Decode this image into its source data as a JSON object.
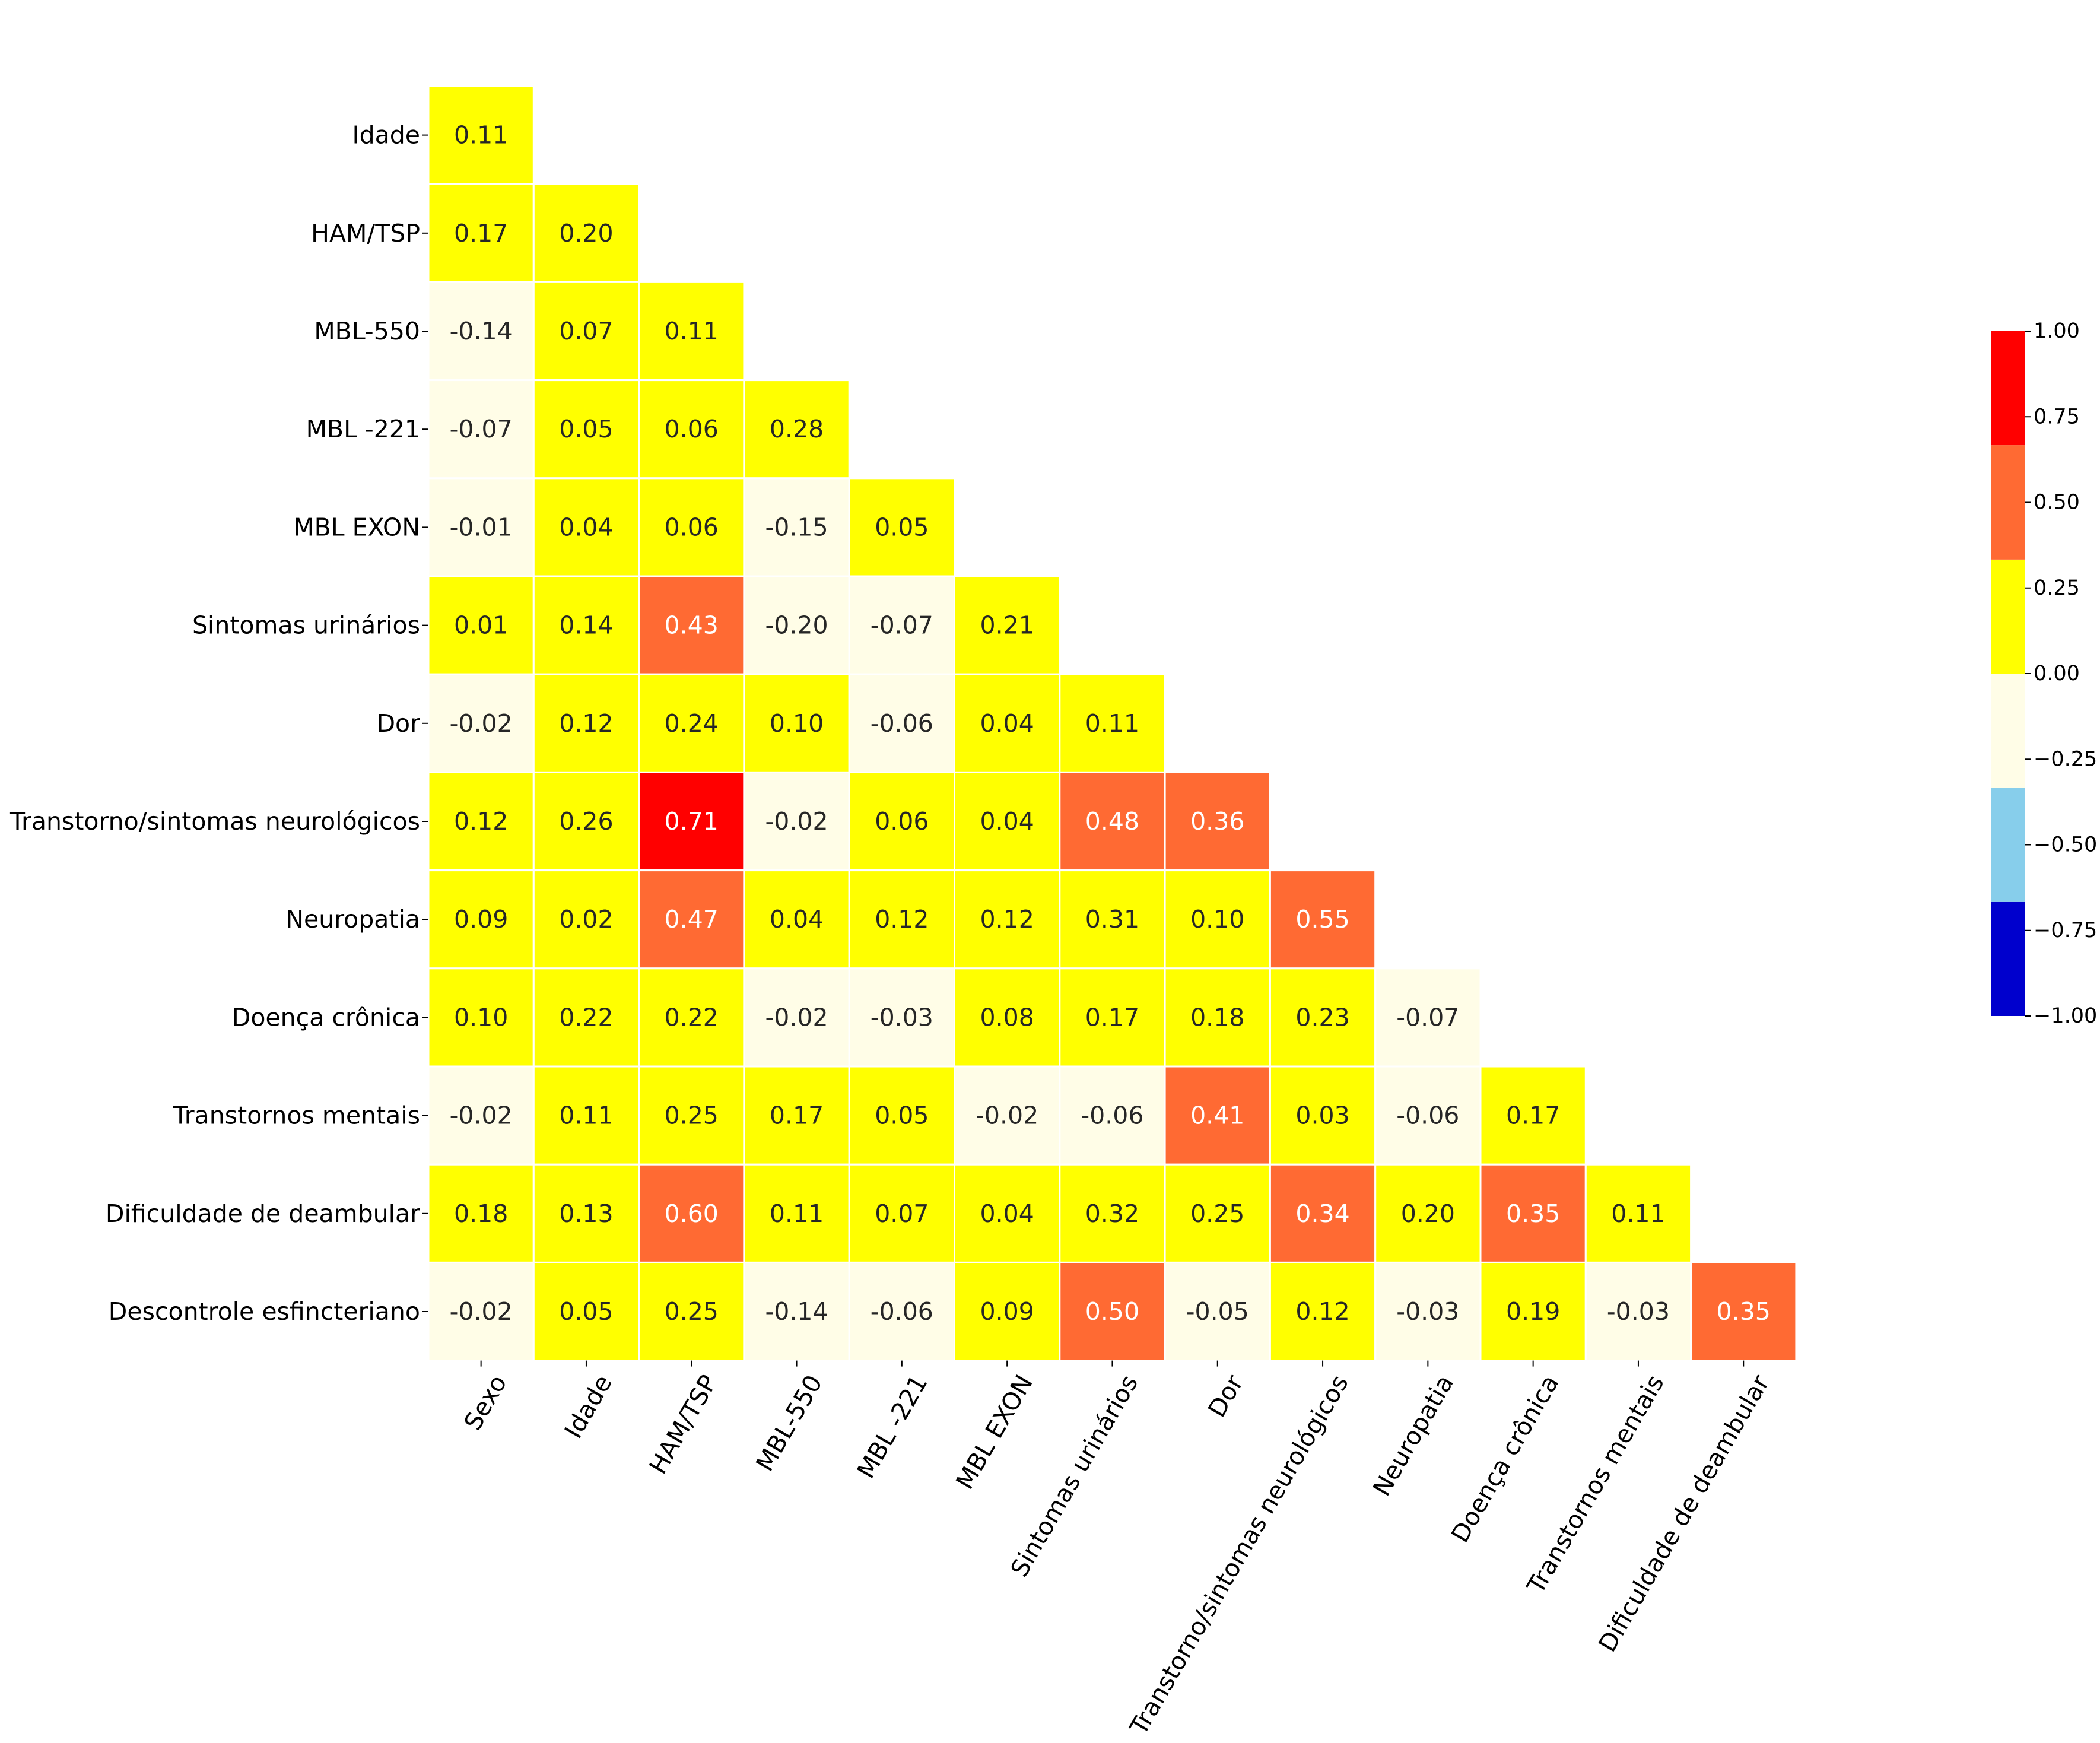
{
  "chart_data": {
    "type": "heatmap",
    "title": "",
    "xlabel": "",
    "ylabel": "",
    "row_labels": [
      "Idade",
      "HAM/TSP",
      "MBL-550",
      "MBL -221",
      "MBL EXON",
      "Sintomas urinários",
      "Dor",
      "Transtorno/sintomas neurológicos",
      "Neuropatia",
      "Doença crônica",
      "Transtornos mentais",
      "Dificuldade de deambular",
      "Descontrole esfincteriano"
    ],
    "col_labels": [
      "Sexo",
      "Idade",
      "HAM/TSP",
      "MBL-550",
      "MBL -221",
      "MBL EXON",
      "Sintomas urinários",
      "Dor",
      "Transtorno/sintomas neurológicos",
      "Neuropatia",
      "Doença crônica",
      "Transtornos mentais",
      "Dificuldade de deambular"
    ],
    "values": [
      [
        0.11
      ],
      [
        0.17,
        0.2
      ],
      [
        -0.14,
        0.07,
        0.11
      ],
      [
        -0.07,
        0.05,
        0.06,
        0.28
      ],
      [
        -0.01,
        0.04,
        0.06,
        -0.15,
        0.05
      ],
      [
        0.01,
        0.14,
        0.43,
        -0.2,
        -0.07,
        0.21
      ],
      [
        -0.02,
        0.12,
        0.24,
        0.1,
        -0.06,
        0.04,
        0.11
      ],
      [
        0.12,
        0.26,
        0.71,
        -0.02,
        0.06,
        0.04,
        0.48,
        0.36
      ],
      [
        0.09,
        0.02,
        0.47,
        0.04,
        0.12,
        0.12,
        0.31,
        0.1,
        0.55
      ],
      [
        0.1,
        0.22,
        0.22,
        -0.02,
        -0.03,
        0.08,
        0.17,
        0.18,
        0.23,
        -0.07
      ],
      [
        -0.02,
        0.11,
        0.25,
        0.17,
        0.05,
        -0.02,
        -0.06,
        0.41,
        0.03,
        -0.06,
        0.17
      ],
      [
        0.18,
        0.13,
        0.6,
        0.11,
        0.07,
        0.04,
        0.32,
        0.25,
        0.34,
        0.2,
        0.35,
        0.11
      ],
      [
        -0.02,
        0.05,
        0.25,
        -0.14,
        -0.06,
        0.09,
        0.5,
        -0.05,
        0.12,
        -0.03,
        0.19,
        -0.03,
        0.35
      ]
    ],
    "colorscale": {
      "range": [
        -1.0,
        1.0
      ],
      "bins": [
        {
          "min": -1.0,
          "max": -0.667,
          "color": "#0000cd"
        },
        {
          "min": -0.667,
          "max": -0.333,
          "color": "#87ceeb"
        },
        {
          "min": -0.333,
          "max": 0.0,
          "color": "#fffde7"
        },
        {
          "min": 0.0,
          "max": 0.333,
          "color": "#ffff00"
        },
        {
          "min": 0.333,
          "max": 0.667,
          "color": "#ff6a33"
        },
        {
          "min": 0.667,
          "max": 1.0,
          "color": "#ff0000"
        }
      ],
      "ticks": [
        "1.00",
        "0.75",
        "0.50",
        "0.25",
        "0.00",
        "−0.25",
        "−0.50",
        "−0.75",
        "−1.00"
      ]
    },
    "annotation_text_dark": "#262626",
    "annotation_text_light": "#ffffff",
    "colorbar": true
  }
}
